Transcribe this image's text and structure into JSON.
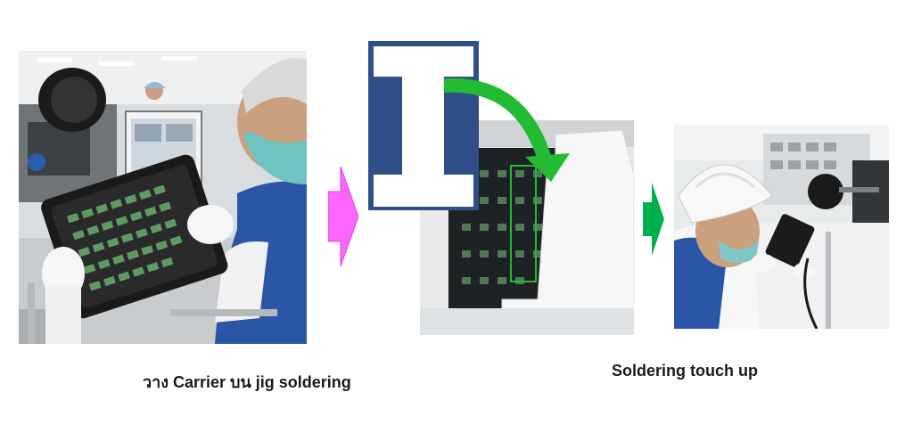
{
  "captions": {
    "step1": "วาง Carrier บน jig soldering",
    "step2": "Soldering touch up"
  },
  "colors": {
    "arrow_1": "#ff66ff",
    "arrow_2": "#00b050",
    "curved_arrow": "#22bb33",
    "cover_plate": "#ffffff",
    "cover_background": "#2e4f8a"
  },
  "images": {
    "photo_1": "Operator wearing gloves and face mask holding a black carrier tray with green components",
    "photo_2a": "White cover plate on dark blue background",
    "photo_2b": "White cover placed over black jig with green components",
    "photo_3": "Operator in hair net performing soldering touch up at workstation"
  }
}
